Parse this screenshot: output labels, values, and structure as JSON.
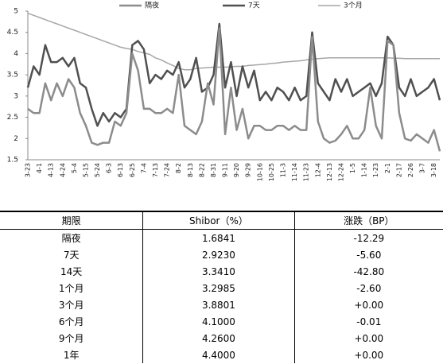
{
  "chart_data": {
    "type": "line",
    "categories": [
      "3-23",
      null,
      "4-1",
      null,
      "4-13",
      null,
      "4-24",
      null,
      "5-4",
      null,
      "5-15",
      null,
      "5-24",
      null,
      "6-3",
      null,
      "6-13",
      null,
      "6-25",
      null,
      "7-4",
      null,
      "7-13",
      null,
      "7-24",
      null,
      "8-2",
      null,
      "8-13",
      null,
      "8-22",
      null,
      "8-31",
      null,
      "9-11",
      null,
      "9-20",
      null,
      "9-29",
      null,
      "10-16",
      null,
      "10-25",
      null,
      "11-3",
      null,
      "11-14",
      null,
      "11-23",
      null,
      "12-4",
      null,
      "12-13",
      null,
      "12-24",
      null,
      "1-5",
      null,
      "1-14",
      null,
      "1-23",
      null,
      "2-1",
      null,
      "2-17",
      null,
      "2-26",
      null,
      "3-7",
      null,
      "3-18",
      null
    ],
    "series": [
      {
        "name": "隔夜",
        "color": "#8c8c8c",
        "width": 2.5,
        "values": [
          2.7,
          2.6,
          2.6,
          3.3,
          2.9,
          3.3,
          3.0,
          3.4,
          3.2,
          2.6,
          2.3,
          1.9,
          1.85,
          1.9,
          1.9,
          2.4,
          2.3,
          2.6,
          4.0,
          3.6,
          2.7,
          2.7,
          2.6,
          2.6,
          2.7,
          2.6,
          3.5,
          2.3,
          2.2,
          2.1,
          2.4,
          3.3,
          2.8,
          4.6,
          2.1,
          3.2,
          2.2,
          2.7,
          2.0,
          2.3,
          2.3,
          2.2,
          2.2,
          2.3,
          2.3,
          2.2,
          2.3,
          2.2,
          2.2,
          4.4,
          2.4,
          2.0,
          1.9,
          1.95,
          2.1,
          2.3,
          2.0,
          2.0,
          2.2,
          3.2,
          2.3,
          2.0,
          4.3,
          4.2,
          2.6,
          2.0,
          1.95,
          2.1,
          2.0,
          1.9,
          2.2,
          1.7
        ]
      },
      {
        "name": "7天",
        "color": "#505050",
        "width": 2.5,
        "values": [
          3.2,
          3.7,
          3.5,
          4.2,
          3.8,
          3.8,
          3.9,
          3.7,
          3.9,
          3.3,
          3.2,
          2.7,
          2.3,
          2.6,
          2.4,
          2.6,
          2.5,
          2.7,
          4.2,
          4.3,
          4.1,
          3.3,
          3.5,
          3.4,
          3.6,
          3.5,
          3.8,
          3.2,
          3.4,
          3.9,
          3.1,
          3.2,
          3.5,
          4.7,
          3.2,
          3.8,
          3.0,
          3.7,
          3.2,
          3.6,
          2.9,
          3.1,
          2.9,
          3.2,
          3.1,
          2.9,
          3.2,
          2.9,
          3.0,
          4.5,
          3.3,
          3.1,
          2.9,
          3.4,
          3.1,
          3.4,
          3.0,
          3.1,
          3.2,
          3.3,
          3.0,
          3.3,
          4.4,
          4.2,
          3.2,
          3.0,
          3.4,
          3.0,
          3.1,
          3.2,
          3.4,
          2.9
        ]
      },
      {
        "name": "3个月",
        "color": "#a6a6a6",
        "width": 1.5,
        "values": [
          4.95,
          4.9,
          4.85,
          4.8,
          4.75,
          4.7,
          4.65,
          4.6,
          4.55,
          4.5,
          4.45,
          4.4,
          4.35,
          4.3,
          4.25,
          4.2,
          4.15,
          4.12,
          4.1,
          4.05,
          4.02,
          3.98,
          3.9,
          3.85,
          3.78,
          3.72,
          3.65,
          3.62,
          3.62,
          3.65,
          3.66,
          3.67,
          3.68,
          3.68,
          3.68,
          3.69,
          3.7,
          3.7,
          3.72,
          3.73,
          3.74,
          3.75,
          3.77,
          3.78,
          3.8,
          3.81,
          3.82,
          3.83,
          3.85,
          3.87,
          3.88,
          3.89,
          3.9,
          3.9,
          3.9,
          3.9,
          3.9,
          3.9,
          3.9,
          3.9,
          3.9,
          3.9,
          3.9,
          3.89,
          3.89,
          3.88,
          3.88,
          3.88,
          3.88,
          3.88,
          3.88,
          3.88
        ]
      }
    ],
    "ylim": [
      1.5,
      5
    ],
    "yticks": [
      1.5,
      2,
      2.5,
      3,
      3.5,
      4,
      4.5,
      5
    ],
    "legend": "top"
  },
  "table": {
    "columns": [
      "期限",
      "Shibor（%）",
      "涨跌（BP）"
    ],
    "rows": [
      [
        "隔夜",
        "1.6841",
        "-12.29"
      ],
      [
        "7天",
        "2.9230",
        "-5.60"
      ],
      [
        "14天",
        "3.3410",
        "-42.80"
      ],
      [
        "1个月",
        "3.2985",
        "-2.60"
      ],
      [
        "3个月",
        "3.8801",
        "+0.00"
      ],
      [
        "6个月",
        "4.1000",
        "-0.01"
      ],
      [
        "9个月",
        "4.2600",
        "+0.00"
      ],
      [
        "1年",
        "4.4000",
        "+0.00"
      ]
    ]
  }
}
